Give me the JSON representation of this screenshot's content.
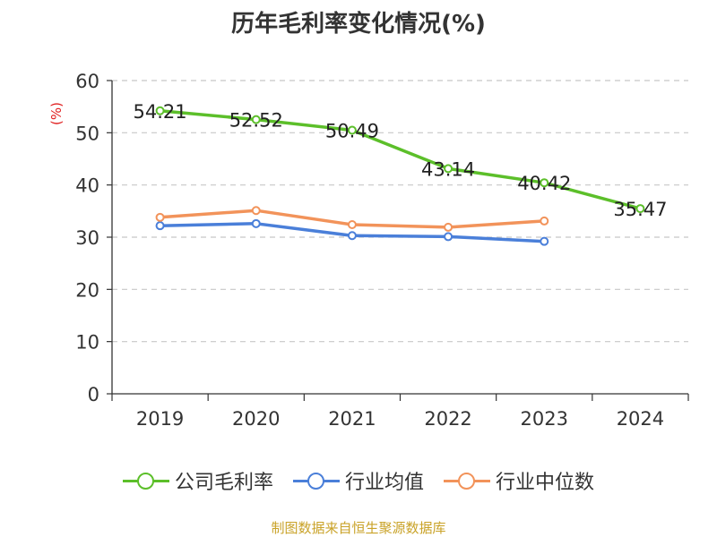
{
  "title": "历年毛利率变化情况(%)",
  "source_note": "制图数据来自恒生聚源数据库",
  "chart_data": {
    "type": "line",
    "ylabel": "(%)",
    "xlabel": "",
    "ylim": [
      0,
      60
    ],
    "y_ticks": [
      0,
      10,
      20,
      30,
      40,
      50,
      60
    ],
    "grid": true,
    "legend_position": "bottom",
    "categories": [
      "2019",
      "2020",
      "2021",
      "2022",
      "2023",
      "2024"
    ],
    "series": [
      {
        "name": "公司毛利率",
        "color": "#5cbf2a",
        "values": [
          54.21,
          52.52,
          50.49,
          43.14,
          40.42,
          35.47
        ],
        "labels": [
          "54.21",
          "52.52",
          "50.49",
          "43.14",
          "40.42",
          "35.47"
        ]
      },
      {
        "name": "行业均值",
        "color": "#4a7fd9",
        "values": [
          32.2,
          32.6,
          30.3,
          30.1,
          29.2,
          null
        ]
      },
      {
        "name": "行业中位数",
        "color": "#f2935a",
        "values": [
          33.8,
          35.1,
          32.4,
          31.9,
          33.1,
          null
        ]
      }
    ]
  }
}
